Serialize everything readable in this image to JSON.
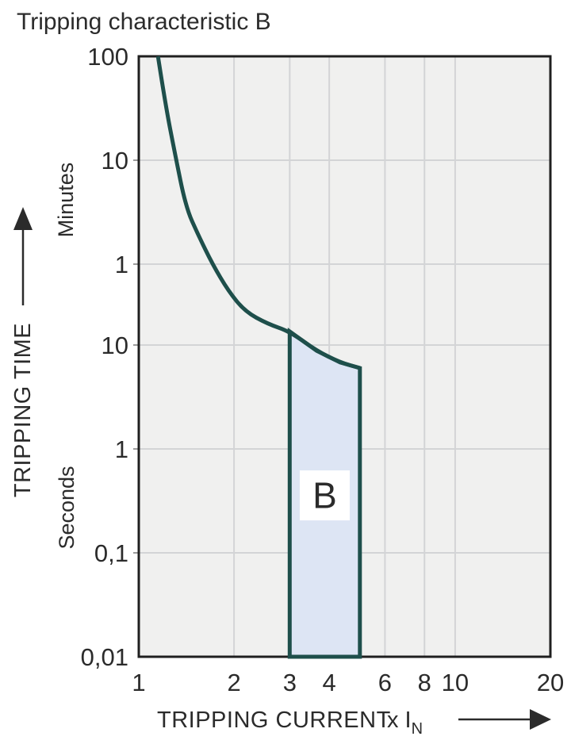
{
  "title": "Tripping characteristic B",
  "colors": {
    "curve": "#1e4f4b",
    "region_fill": "#dde5f4",
    "plot_bg": "#f0f0ef",
    "grid": "#d3d4d6",
    "frame": "#1f1f1f",
    "text": "#2b2b2b",
    "label_box": "#ffffff"
  },
  "y_axis": {
    "title": "TRIPPING TIME",
    "unit_top": "Minutes",
    "unit_bottom": "Seconds",
    "scale": "log",
    "range_seconds": [
      0.01,
      6000
    ],
    "ticks": [
      {
        "label": "100",
        "seconds": 6000
      },
      {
        "label": "10",
        "seconds": 600
      },
      {
        "label": "1",
        "seconds": 60
      },
      {
        "label": "10",
        "seconds": 10
      },
      {
        "label": "1",
        "seconds": 1
      },
      {
        "label": "0,1",
        "seconds": 0.1
      },
      {
        "label": "0,01",
        "seconds": 0.01
      }
    ]
  },
  "x_axis": {
    "title": "TRIPPING CURRENT",
    "unit": "x I",
    "unit_sub": "N",
    "scale": "log",
    "range": [
      1,
      20
    ],
    "ticks": [
      {
        "label": "1",
        "value": 1
      },
      {
        "label": "2",
        "value": 2
      },
      {
        "label": "3",
        "value": 3
      },
      {
        "label": "4",
        "value": 4
      },
      {
        "label": "6",
        "value": 6
      },
      {
        "label": "8",
        "value": 8
      },
      {
        "label": "10",
        "value": 10
      },
      {
        "label": "20",
        "value": 20
      }
    ]
  },
  "chart_data": {
    "type": "line",
    "title": "Tripping characteristic B",
    "xlabel": "TRIPPING CURRENT x IN",
    "ylabel": "TRIPPING TIME",
    "x_units": "multiple of rated current IN",
    "y_units": "seconds",
    "x_scale": "log",
    "y_scale": "log",
    "xlim": [
      1,
      20
    ],
    "ylim": [
      0.01,
      6000
    ],
    "grid": true,
    "series": [
      {
        "name": "tripping curve",
        "points": [
          [
            1.15,
            6000
          ],
          [
            1.21,
            2200
          ],
          [
            1.3,
            700
          ],
          [
            1.41,
            210
          ],
          [
            1.54,
            115
          ],
          [
            1.71,
            60
          ],
          [
            1.92,
            33
          ],
          [
            2.17,
            21
          ],
          [
            2.55,
            16
          ],
          [
            3.0,
            13.5
          ],
          [
            3.65,
            8.8
          ],
          [
            4.33,
            6.8
          ],
          [
            5.0,
            6.0
          ]
        ]
      }
    ],
    "region": {
      "label": "B",
      "x_range": [
        3,
        5
      ],
      "top_seconds_at_edges": [
        13.5,
        6.0
      ],
      "bottom_seconds": 0.01,
      "top_follows_curve": true,
      "label_at": {
        "x": 3.87,
        "seconds": 0.357
      }
    }
  }
}
